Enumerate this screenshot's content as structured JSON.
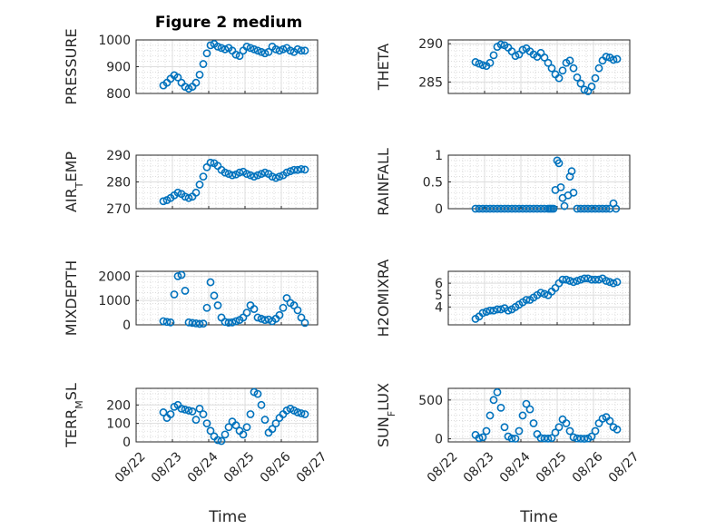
{
  "figure_title": "Figure 2 medium",
  "x_axis_label": "Time",
  "x_tick_labels": [
    "08/22",
    "08/23",
    "08/24",
    "08/25",
    "08/26",
    "08/27"
  ],
  "marker_color": "#0072BD",
  "chart_data": [
    {
      "type": "scatter",
      "title": "Figure 2 medium",
      "ylabel": "PRESSURE",
      "ylim": [
        800,
        1000
      ],
      "yticks": [
        "800",
        "900",
        "1000"
      ],
      "yticks_values": [
        800,
        900,
        1000
      ],
      "xlim": [
        0,
        5
      ],
      "x": [
        0.75,
        0.85,
        0.95,
        1.05,
        1.15,
        1.25,
        1.35,
        1.45,
        1.55,
        1.65,
        1.75,
        1.85,
        1.95,
        2.05,
        2.15,
        2.25,
        2.35,
        2.45,
        2.55,
        2.65,
        2.75,
        2.85,
        2.95,
        3.05,
        3.15,
        3.25,
        3.35,
        3.45,
        3.55,
        3.65,
        3.75,
        3.85,
        3.95,
        4.05,
        4.15,
        4.25,
        4.35,
        4.45,
        4.55,
        4.65
      ],
      "y": [
        830,
        840,
        855,
        868,
        860,
        840,
        825,
        818,
        825,
        840,
        870,
        910,
        950,
        980,
        985,
        975,
        970,
        965,
        970,
        960,
        945,
        940,
        960,
        975,
        970,
        965,
        960,
        955,
        950,
        955,
        975,
        965,
        960,
        965,
        970,
        960,
        955,
        965,
        960,
        960
      ]
    },
    {
      "type": "scatter",
      "ylabel": "THETA",
      "ylim": [
        283.5,
        290.5
      ],
      "yticks": [
        "285",
        "290"
      ],
      "yticks_values": [
        285,
        290
      ],
      "xlim": [
        0,
        5
      ],
      "x": [
        0.75,
        0.85,
        0.95,
        1.05,
        1.15,
        1.25,
        1.35,
        1.45,
        1.55,
        1.65,
        1.75,
        1.85,
        1.95,
        2.05,
        2.15,
        2.25,
        2.35,
        2.45,
        2.55,
        2.65,
        2.75,
        2.85,
        2.95,
        3.05,
        3.15,
        3.25,
        3.35,
        3.45,
        3.55,
        3.65,
        3.75,
        3.85,
        3.95,
        4.05,
        4.15,
        4.25,
        4.35,
        4.45,
        4.55,
        4.65
      ],
      "y": [
        287.6,
        287.4,
        287.2,
        287.1,
        287.5,
        288.5,
        289.6,
        289.9,
        289.8,
        289.5,
        289.0,
        288.4,
        288.6,
        289.2,
        289.4,
        289.0,
        288.6,
        288.3,
        288.8,
        288.2,
        287.5,
        286.8,
        286.0,
        285.5,
        286.5,
        287.5,
        287.8,
        286.8,
        285.6,
        284.8,
        284.0,
        283.8,
        284.4,
        285.5,
        286.8,
        287.8,
        288.3,
        288.2,
        287.9,
        288.0
      ]
    },
    {
      "type": "scatter",
      "ylabel": "AIR_TEMP",
      "ylim": [
        270,
        290
      ],
      "yticks": [
        "270",
        "280",
        "290"
      ],
      "yticks_values": [
        270,
        280,
        290
      ],
      "xlim": [
        0,
        5
      ],
      "x": [
        0.75,
        0.85,
        0.95,
        1.05,
        1.15,
        1.25,
        1.35,
        1.45,
        1.55,
        1.65,
        1.75,
        1.85,
        1.95,
        2.05,
        2.15,
        2.25,
        2.35,
        2.45,
        2.55,
        2.65,
        2.75,
        2.85,
        2.95,
        3.05,
        3.15,
        3.25,
        3.35,
        3.45,
        3.55,
        3.65,
        3.75,
        3.85,
        3.95,
        4.05,
        4.15,
        4.25,
        4.35,
        4.45,
        4.55,
        4.65
      ],
      "y": [
        272.8,
        273.2,
        274.0,
        275.0,
        276.0,
        275.5,
        274.5,
        274.0,
        274.5,
        276.0,
        279.0,
        282.0,
        285.5,
        287.2,
        287.0,
        286.0,
        284.5,
        283.5,
        283.0,
        282.5,
        282.8,
        283.5,
        283.8,
        283.0,
        282.5,
        282.0,
        282.5,
        283.0,
        283.5,
        283.0,
        282.0,
        281.5,
        282.0,
        282.5,
        283.5,
        284.0,
        284.5,
        284.5,
        284.8,
        284.6
      ]
    },
    {
      "type": "scatter",
      "ylabel": "RAINFALL",
      "ylim": [
        0,
        1
      ],
      "yticks": [
        "0",
        "0.5",
        "1"
      ],
      "yticks_values": [
        0,
        0.5,
        1
      ],
      "xlim": [
        0,
        5
      ],
      "x": [
        0.75,
        0.85,
        0.95,
        1.05,
        1.15,
        1.25,
        1.35,
        1.45,
        1.55,
        1.65,
        1.75,
        1.85,
        1.95,
        2.05,
        2.15,
        2.25,
        2.35,
        2.45,
        2.55,
        2.65,
        2.75,
        2.8,
        2.85,
        2.9,
        2.95,
        3.0,
        3.05,
        3.1,
        3.15,
        3.2,
        3.3,
        3.35,
        3.4,
        3.45,
        3.55,
        3.65,
        3.75,
        3.85,
        3.95,
        4.05,
        4.15,
        4.25,
        4.35,
        4.45,
        4.55,
        4.62
      ],
      "y": [
        0,
        0,
        0,
        0,
        0,
        0,
        0,
        0,
        0,
        0,
        0,
        0,
        0,
        0,
        0,
        0,
        0,
        0,
        0,
        0,
        0,
        0,
        0,
        0,
        0.35,
        0.9,
        0.85,
        0.4,
        0.2,
        0.05,
        0.25,
        0.6,
        0.7,
        0.3,
        0,
        0,
        0,
        0,
        0,
        0,
        0,
        0,
        0,
        0,
        0.1,
        0
      ]
    },
    {
      "type": "scatter",
      "ylabel": "MIXDEPTH",
      "ylim": [
        0,
        2200
      ],
      "yticks": [
        "0",
        "1000",
        "2000"
      ],
      "yticks_values": [
        0,
        1000,
        2000
      ],
      "xlim": [
        0,
        5
      ],
      "x": [
        0.75,
        0.85,
        0.95,
        1.05,
        1.15,
        1.25,
        1.35,
        1.45,
        1.55,
        1.65,
        1.75,
        1.85,
        1.95,
        2.05,
        2.15,
        2.25,
        2.35,
        2.45,
        2.55,
        2.65,
        2.75,
        2.85,
        2.95,
        3.05,
        3.15,
        3.25,
        3.35,
        3.45,
        3.55,
        3.65,
        3.75,
        3.85,
        3.95,
        4.05,
        4.15,
        4.25,
        4.35,
        4.45,
        4.55,
        4.65
      ],
      "y": [
        150,
        120,
        100,
        1250,
        2000,
        2050,
        1400,
        100,
        80,
        60,
        40,
        50,
        700,
        1750,
        1200,
        800,
        300,
        120,
        90,
        100,
        150,
        200,
        300,
        500,
        800,
        650,
        300,
        250,
        200,
        220,
        150,
        250,
        400,
        700,
        1100,
        900,
        800,
        600,
        300,
        80
      ]
    },
    {
      "type": "scatter",
      "ylabel": "H2OMIXRA",
      "ylim": [
        2.5,
        7
      ],
      "yticks": [
        "4",
        "5",
        "6"
      ],
      "yticks_values": [
        4,
        5,
        6
      ],
      "xlim": [
        0,
        5
      ],
      "x": [
        0.75,
        0.85,
        0.95,
        1.05,
        1.15,
        1.25,
        1.35,
        1.45,
        1.55,
        1.65,
        1.75,
        1.85,
        1.95,
        2.05,
        2.15,
        2.25,
        2.35,
        2.45,
        2.55,
        2.65,
        2.75,
        2.85,
        2.95,
        3.05,
        3.15,
        3.25,
        3.35,
        3.45,
        3.55,
        3.65,
        3.75,
        3.85,
        3.95,
        4.05,
        4.15,
        4.25,
        4.35,
        4.45,
        4.55,
        4.65
      ],
      "y": [
        3.0,
        3.2,
        3.5,
        3.6,
        3.7,
        3.7,
        3.8,
        3.8,
        3.9,
        3.7,
        3.8,
        4.0,
        4.2,
        4.4,
        4.6,
        4.6,
        4.8,
        5.0,
        5.2,
        5.1,
        5.0,
        5.3,
        5.6,
        6.0,
        6.3,
        6.3,
        6.2,
        6.1,
        6.2,
        6.3,
        6.4,
        6.4,
        6.3,
        6.3,
        6.3,
        6.4,
        6.2,
        6.1,
        6.0,
        6.1
      ]
    },
    {
      "type": "scatter",
      "ylabel": "TERR_MSL",
      "ylim": [
        0,
        290
      ],
      "yticks": [
        "0",
        "100",
        "200"
      ],
      "yticks_values": [
        0,
        100,
        200
      ],
      "xlim": [
        0,
        5
      ],
      "x": [
        0.75,
        0.85,
        0.95,
        1.05,
        1.15,
        1.25,
        1.35,
        1.45,
        1.55,
        1.65,
        1.75,
        1.85,
        1.95,
        2.05,
        2.15,
        2.25,
        2.35,
        2.45,
        2.55,
        2.65,
        2.75,
        2.85,
        2.95,
        3.05,
        3.15,
        3.25,
        3.35,
        3.45,
        3.55,
        3.65,
        3.75,
        3.85,
        3.95,
        4.05,
        4.15,
        4.25,
        4.35,
        4.45,
        4.55,
        4.65
      ],
      "y": [
        160,
        130,
        150,
        190,
        200,
        180,
        175,
        170,
        165,
        120,
        180,
        150,
        100,
        60,
        30,
        10,
        5,
        40,
        80,
        110,
        90,
        60,
        40,
        80,
        150,
        270,
        260,
        200,
        120,
        50,
        70,
        100,
        130,
        150,
        170,
        180,
        170,
        160,
        155,
        150
      ]
    },
    {
      "type": "scatter",
      "ylabel": "SUN_FLUX",
      "ylim": [
        -40,
        650
      ],
      "yticks": [
        "0",
        "500"
      ],
      "yticks_values": [
        0,
        500
      ],
      "xlim": [
        0,
        5
      ],
      "x": [
        0.75,
        0.85,
        0.95,
        1.05,
        1.15,
        1.25,
        1.35,
        1.45,
        1.55,
        1.65,
        1.75,
        1.85,
        1.95,
        2.05,
        2.15,
        2.25,
        2.35,
        2.45,
        2.55,
        2.65,
        2.75,
        2.85,
        2.95,
        3.05,
        3.15,
        3.25,
        3.35,
        3.45,
        3.55,
        3.65,
        3.75,
        3.85,
        3.95,
        4.05,
        4.15,
        4.25,
        4.35,
        4.45,
        4.55,
        4.65
      ],
      "y": [
        50,
        10,
        20,
        100,
        300,
        500,
        600,
        400,
        150,
        30,
        5,
        2,
        100,
        300,
        450,
        380,
        200,
        60,
        10,
        5,
        3,
        10,
        80,
        150,
        250,
        200,
        100,
        20,
        5,
        2,
        1,
        5,
        30,
        100,
        200,
        260,
        280,
        230,
        150,
        120
      ]
    }
  ]
}
